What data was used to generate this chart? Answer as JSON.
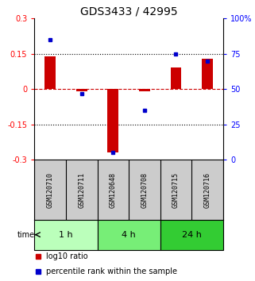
{
  "title": "GDS3433 / 42995",
  "samples": [
    "GSM120710",
    "GSM120711",
    "GSM120648",
    "GSM120708",
    "GSM120715",
    "GSM120716"
  ],
  "log10_ratio": [
    0.14,
    -0.01,
    -0.27,
    -0.01,
    0.09,
    0.13
  ],
  "percentile_rank": [
    85,
    47,
    5,
    35,
    75,
    70
  ],
  "time_groups": [
    {
      "label": "1 h",
      "samples": [
        0,
        1
      ],
      "color": "#bbffbb"
    },
    {
      "label": "4 h",
      "samples": [
        2,
        3
      ],
      "color": "#77ee77"
    },
    {
      "label": "24 h",
      "samples": [
        4,
        5
      ],
      "color": "#33cc33"
    }
  ],
  "bar_color": "#cc0000",
  "dot_color": "#0000cc",
  "sample_bg_color": "#cccccc",
  "ylim_left": [
    -0.3,
    0.3
  ],
  "ylim_right": [
    0,
    100
  ],
  "yticks_left": [
    -0.3,
    -0.15,
    0.0,
    0.15,
    0.3
  ],
  "ytick_labels_left": [
    "-0.3",
    "-0.15",
    "0",
    "0.15",
    "0.3"
  ],
  "yticks_right": [
    0,
    25,
    50,
    75,
    100
  ],
  "ytick_labels_right": [
    "0",
    "25",
    "50",
    "75",
    "100%"
  ],
  "hlines": [
    -0.15,
    0.15
  ],
  "hline_zero_color": "#cc0000",
  "hline_dotted_color": "#000000",
  "bg_color": "#ffffff",
  "bar_width": 0.35,
  "title_fontsize": 10,
  "tick_fontsize": 7,
  "legend_fontsize": 7,
  "time_label_fontsize": 8,
  "sample_label_fontsize": 6
}
